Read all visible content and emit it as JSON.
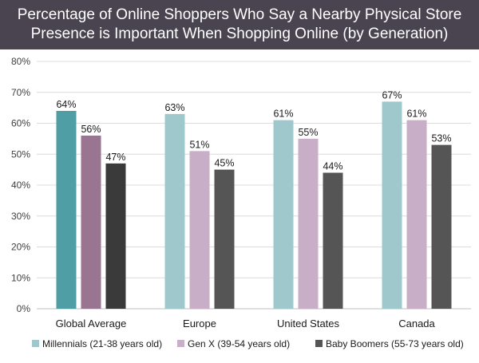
{
  "title_lines": [
    "Percentage of Online Shoppers Who Say a Nearby Physical Store",
    "Presence is Important When Shopping Online (by Generation)"
  ],
  "chart_data": {
    "type": "bar",
    "title": "Percentage of Online Shoppers Who Say a Nearby Physical Store Presence is Important When Shopping Online (by Generation)",
    "categories": [
      "Global Average",
      "Europe",
      "United States",
      "Canada"
    ],
    "series": [
      {
        "name": "Millennials (21-38 years old)",
        "values": [
          64,
          63,
          61,
          67
        ],
        "color": "#9fc8cd",
        "highlight_color": "#4f9ea6"
      },
      {
        "name": "Gen X (39-54 years old)",
        "values": [
          56,
          51,
          55,
          61
        ],
        "color": "#c8aec6",
        "highlight_color": "#9a7591"
      },
      {
        "name": "Baby Boomers (55-73 years old)",
        "values": [
          47,
          45,
          44,
          53
        ],
        "color": "#555555",
        "highlight_color": "#3a3a3a"
      }
    ],
    "highlighted_category": "Global Average",
    "data_labels": [
      [
        "64%",
        "56%",
        "47%"
      ],
      [
        "63%",
        "51%",
        "45%"
      ],
      [
        "61%",
        "55%",
        "44%"
      ],
      [
        "67%",
        "61%",
        "53%"
      ]
    ],
    "yticks": [
      "0%",
      "10%",
      "20%",
      "30%",
      "40%",
      "50%",
      "60%",
      "70%",
      "80%"
    ],
    "ylim": [
      0,
      80
    ],
    "grid": true,
    "legend_position": "bottom",
    "xlabel": "",
    "ylabel": ""
  }
}
